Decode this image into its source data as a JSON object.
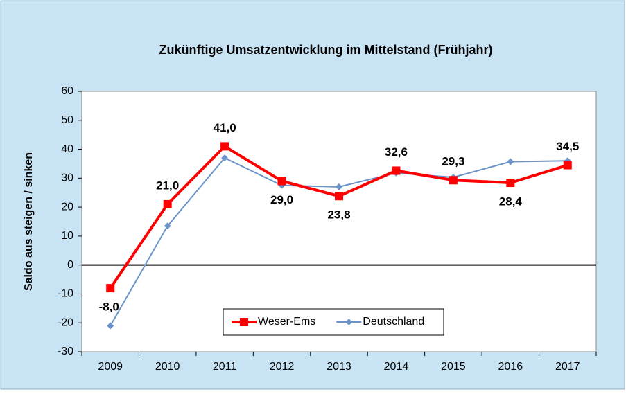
{
  "chart_data": {
    "type": "line",
    "title": "Zukünftige Umsatzentwicklung im Mittelstand (Frühjahr)",
    "y_label": "Saldo aus steigen / sinken",
    "categories": [
      "2009",
      "2010",
      "2011",
      "2012",
      "2013",
      "2014",
      "2015",
      "2016",
      "2017"
    ],
    "series": [
      {
        "name": "Weser-Ems",
        "color": "#ff0000",
        "values": [
          -8.0,
          21.0,
          41.0,
          29.0,
          23.8,
          32.6,
          29.3,
          28.4,
          34.5
        ],
        "value_labels": [
          "-8,0",
          "21,0",
          "41,0",
          "29,0",
          "23,8",
          "32,6",
          "29,3",
          "28,4",
          "34,5"
        ]
      },
      {
        "name": "Deutschland",
        "color": "#6b93c9",
        "values": [
          -21,
          13.5,
          37,
          27.5,
          27,
          31.8,
          30.3,
          35.7,
          36
        ]
      }
    ],
    "ylim": [
      -30,
      60
    ],
    "yticks": [
      -30,
      -20,
      -10,
      0,
      10,
      20,
      30,
      40,
      50,
      60
    ],
    "legend": "bottom-center"
  }
}
